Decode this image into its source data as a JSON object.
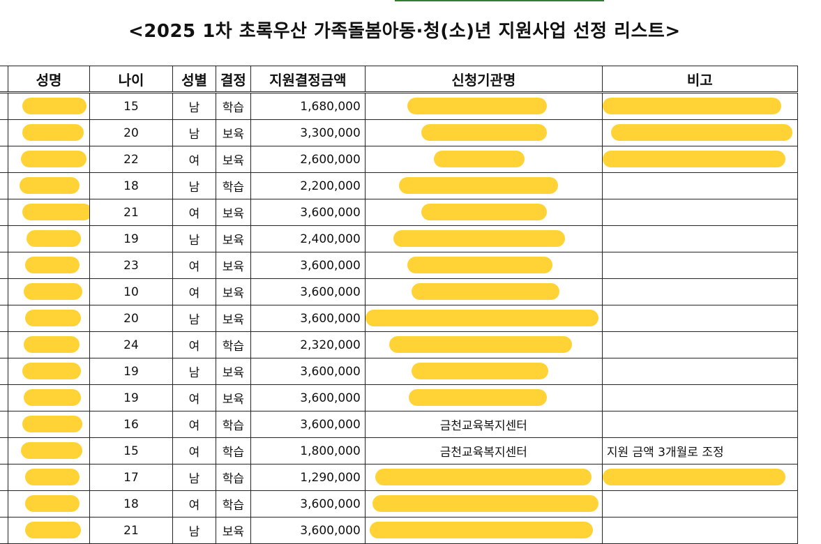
{
  "sheet": {
    "title": "<2025 1차 초록우산 가족돌봄아동·청(소)년 지원사업 선정 리스트>",
    "columns": {
      "name": "성명",
      "age": "나이",
      "gender": "성별",
      "decision": "결정",
      "amount": "지원결정금액",
      "org": "신청기관명",
      "note": "비고"
    },
    "rows": [
      {
        "age": "15",
        "gender": "남",
        "decision": "학습",
        "amount": "1,680,000",
        "org": "",
        "note": ""
      },
      {
        "age": "20",
        "gender": "남",
        "decision": "보육",
        "amount": "3,300,000",
        "org": "",
        "note": ""
      },
      {
        "age": "22",
        "gender": "여",
        "decision": "보육",
        "amount": "2,600,000",
        "org": "",
        "note": ""
      },
      {
        "age": "18",
        "gender": "남",
        "decision": "학습",
        "amount": "2,200,000",
        "org": "",
        "note": ""
      },
      {
        "age": "21",
        "gender": "여",
        "decision": "보육",
        "amount": "3,600,000",
        "org": "",
        "note": ""
      },
      {
        "age": "19",
        "gender": "남",
        "decision": "보육",
        "amount": "2,400,000",
        "org": "",
        "note": ""
      },
      {
        "age": "23",
        "gender": "여",
        "decision": "보육",
        "amount": "3,600,000",
        "org": "",
        "note": ""
      },
      {
        "age": "10",
        "gender": "여",
        "decision": "보육",
        "amount": "3,600,000",
        "org": "",
        "note": ""
      },
      {
        "age": "20",
        "gender": "남",
        "decision": "보육",
        "amount": "3,600,000",
        "org": "",
        "note": ""
      },
      {
        "age": "24",
        "gender": "여",
        "decision": "학습",
        "amount": "2,320,000",
        "org": "",
        "note": ""
      },
      {
        "age": "19",
        "gender": "남",
        "decision": "보육",
        "amount": "3,600,000",
        "org": "",
        "note": ""
      },
      {
        "age": "19",
        "gender": "여",
        "decision": "보육",
        "amount": "3,600,000",
        "org": "",
        "note": ""
      },
      {
        "age": "16",
        "gender": "여",
        "decision": "학습",
        "amount": "3,600,000",
        "org": "금천교육복지센터",
        "note": ""
      },
      {
        "age": "15",
        "gender": "여",
        "decision": "학습",
        "amount": "1,800,000",
        "org": "금천교육복지센터",
        "note": "지원 금액 3개월로 조정"
      },
      {
        "age": "17",
        "gender": "남",
        "decision": "학습",
        "amount": "1,290,000",
        "org": "",
        "note": ""
      },
      {
        "age": "18",
        "gender": "여",
        "decision": "학습",
        "amount": "3,600,000",
        "org": "",
        "note": ""
      },
      {
        "age": "21",
        "gender": "남",
        "decision": "보육",
        "amount": "3,600,000",
        "org": "",
        "note": ""
      }
    ]
  },
  "redaction_color": "#ffd335"
}
